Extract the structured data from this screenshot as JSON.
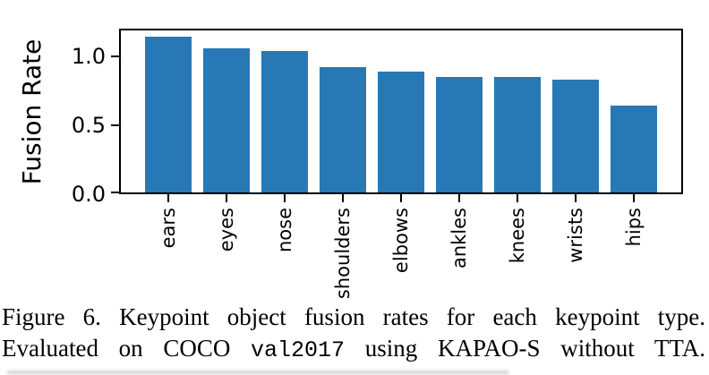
{
  "chart_data": {
    "type": "bar",
    "categories": [
      "ears",
      "eyes",
      "nose",
      "shoulders",
      "elbows",
      "ankles",
      "knees",
      "wrists",
      "hips"
    ],
    "values": [
      1.14,
      1.06,
      1.04,
      0.92,
      0.89,
      0.85,
      0.85,
      0.83,
      0.64
    ],
    "title": "",
    "xlabel": "",
    "ylabel": "Fusion Rate",
    "yticks": [
      0.0,
      0.5,
      1.0
    ],
    "ytick_labels": [
      "0.0",
      "0.5",
      "1.0"
    ],
    "ylim": [
      0,
      1.2
    ],
    "grid": false,
    "legend_position": "none",
    "bar_color": "#2878b5",
    "axis_color": "#000000"
  },
  "caption": {
    "line1": "Figure 6.  Keypoint object fusion rates for each keypoint type.",
    "line2_prefix": "Evaluated on COCO ",
    "line2_code": "val2017",
    "line2_suffix": " using KAPAO-S without TTA."
  }
}
